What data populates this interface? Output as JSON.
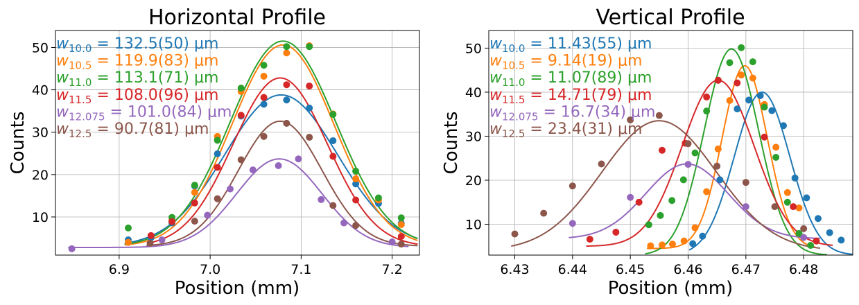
{
  "chart_data": [
    {
      "type": "scatter",
      "title": "Horizontal Profile",
      "xlabel": "Position (mm)",
      "ylabel": "Counts",
      "xlim": [
        6.83,
        7.23
      ],
      "ylim": [
        1.0,
        54.0
      ],
      "xticks": [
        6.9,
        7.0,
        7.1,
        7.2
      ],
      "xtick_labels": [
        "6.9",
        "7.0",
        "7.1",
        "7.2"
      ],
      "yticks": [
        10,
        20,
        30,
        40,
        50
      ],
      "ytick_labels": [
        "10",
        "20",
        "30",
        "40",
        "50"
      ],
      "grid": true,
      "legend_placement": "top-left",
      "series": [
        {
          "name": "w10.0",
          "label_main": "w",
          "label_sub": "10.0",
          "label_value": " = 132.5(50) μm",
          "color": "#1f77b4",
          "x": [
            6.91,
            6.935,
            6.958,
            6.983,
            7.008,
            7.034,
            7.059,
            7.084,
            7.109,
            7.135,
            7.16,
            7.185,
            7.21
          ],
          "y": [
            4.6,
            5.1,
            8.6,
            17.3,
            24.9,
            33.8,
            36.6,
            37.6,
            35.7,
            28.0,
            17.8,
            13.2,
            8.5
          ],
          "fit": {
            "amplitude": 35.8,
            "center": 7.078,
            "sigma": 0.062,
            "offset": 3.0
          }
        },
        {
          "name": "w10.5",
          "label_main": "w",
          "label_sub": "10.5",
          "label_value": " = 119.9(83) μm",
          "color": "#ff7f0e",
          "x": [
            6.91,
            6.958,
            6.983,
            7.008,
            7.034,
            7.059,
            7.084,
            7.109,
            7.135,
            7.16,
            7.185,
            7.21
          ],
          "y": [
            4.0,
            9.2,
            15.8,
            29.0,
            39.6,
            43.2,
            48.7,
            50.4,
            34.3,
            19.0,
            14.0,
            8.2
          ],
          "fit": {
            "amplitude": 47.6,
            "center": 7.08,
            "sigma": 0.056,
            "offset": 3.0
          }
        },
        {
          "name": "w11.0",
          "label_main": "w",
          "label_sub": "11.0",
          "label_value": " = 113.1(71) μm",
          "color": "#2ca02c",
          "x": [
            6.91,
            6.958,
            6.983,
            7.008,
            7.034,
            7.059,
            7.084,
            7.109,
            7.135,
            7.16,
            7.185,
            7.21
          ],
          "y": [
            7.4,
            9.9,
            17.5,
            28.1,
            40.4,
            45.8,
            50.2,
            50.2,
            34.2,
            20.8,
            14.5,
            9.8
          ],
          "fit": {
            "amplitude": 48.5,
            "center": 7.08,
            "sigma": 0.058,
            "offset": 3.0
          }
        },
        {
          "name": "w11.5",
          "label_main": "w",
          "label_sub": "11.5",
          "label_value": " = 108.0(96) μm",
          "color": "#d62728",
          "x": [
            6.935,
            6.958,
            6.983,
            7.008,
            7.034,
            7.059,
            7.084,
            7.109,
            7.135,
            7.16,
            7.21
          ],
          "y": [
            5.6,
            8.9,
            13.3,
            21.7,
            34.0,
            38.2,
            41.2,
            40.9,
            24.3,
            14.0,
            5.4
          ],
          "fit": {
            "amplitude": 39.8,
            "center": 7.077,
            "sigma": 0.052,
            "offset": 3.0
          }
        },
        {
          "name": "w12.075",
          "label_main": "w",
          "label_sub": "12.075",
          "label_value": " = 101.0(84) μm",
          "color": "#9467bd",
          "x": [
            6.848,
            6.947,
            6.997,
            7.022,
            7.047,
            7.075,
            7.097,
            7.122,
            7.147,
            7.2
          ],
          "y": [
            2.5,
            4.6,
            10.4,
            16.6,
            21.1,
            22.1,
            23.7,
            14.1,
            8.6,
            4.1
          ],
          "fit": {
            "amplitude": 20.9,
            "center": 7.076,
            "sigma": 0.047,
            "offset": 2.8
          }
        },
        {
          "name": "w12.5",
          "label_main": "w",
          "label_sub": "12.5",
          "label_value": " = 90.7(81) μm",
          "color": "#8c564b",
          "x": [
            6.934,
            6.983,
            7.008,
            7.034,
            7.059,
            7.084,
            7.109,
            7.135,
            7.16,
            7.21
          ],
          "y": [
            3.8,
            9.0,
            14.3,
            23.5,
            29.0,
            32.1,
            28.8,
            12.7,
            8.0,
            3.6
          ],
          "fit": {
            "amplitude": 29.5,
            "center": 7.077,
            "sigma": 0.046,
            "offset": 3.1
          }
        }
      ]
    },
    {
      "type": "scatter",
      "title": "Vertical Profile",
      "xlabel": "Position (mm)",
      "ylabel": "Counts",
      "xlim": [
        6.4255,
        6.4885
      ],
      "ylim": [
        3.0,
        54.0
      ],
      "xticks": [
        6.43,
        6.44,
        6.45,
        6.46,
        6.47,
        6.48
      ],
      "xtick_labels": [
        "6.43",
        "6.44",
        "6.45",
        "6.46",
        "6.47",
        "6.48"
      ],
      "yticks": [
        10,
        20,
        30,
        40,
        50
      ],
      "ytick_labels": [
        "10",
        "20",
        "30",
        "40",
        "50"
      ],
      "grid": true,
      "legend_placement": "top-left",
      "series": [
        {
          "name": "w10.0",
          "label_main": "w",
          "label_sub": "10.0",
          "label_value": " = 11.43(55) μm",
          "color": "#1f77b4",
          "x": [
            6.4608,
            6.4625,
            6.4655,
            6.4685,
            6.4705,
            6.4725,
            6.4745,
            6.4765,
            6.4785,
            6.4805,
            6.4825,
            6.4845,
            6.4865
          ],
          "y": [
            5.6,
            7.3,
            20.1,
            36.2,
            38.2,
            39.2,
            35.8,
            32.4,
            20.5,
            16.0,
            11.3,
            8.1,
            6.4
          ],
          "fit": {
            "amplitude": 37.0,
            "center": 6.4728,
            "sigma": 0.0048,
            "offset": 3.0
          }
        },
        {
          "name": "w10.5",
          "label_main": "w",
          "label_sub": "10.5",
          "label_value": " = 9.14(19) μm",
          "color": "#ff7f0e",
          "x": [
            6.4535,
            6.4555,
            6.4573,
            6.4593,
            6.4612,
            6.4632,
            6.4652,
            6.4672,
            6.4692,
            6.4712,
            6.4732,
            6.4752,
            6.4772,
            6.4792
          ],
          "y": [
            5.1,
            5.3,
            5.5,
            6.2,
            9.2,
            17.4,
            27.1,
            38.1,
            43.9,
            43.2,
            37.2,
            27.5,
            17.2,
            13.7
          ],
          "fit": {
            "amplitude": 41.5,
            "center": 6.4698,
            "sigma": 0.0039,
            "offset": 4.5
          }
        },
        {
          "name": "w11.0",
          "label_main": "w",
          "label_sub": "11.0",
          "label_value": " = 11.07(89) μm",
          "color": "#2ca02c",
          "x": [
            6.4532,
            6.4552,
            6.4572,
            6.4592,
            6.4612,
            6.4632,
            6.4652,
            6.4672,
            6.4692,
            6.4712,
            6.4732,
            6.4752,
            6.4772,
            6.4792,
            6.4812
          ],
          "y": [
            9.9,
            12.0,
            15.4,
            20.1,
            26.2,
            35.7,
            42.7,
            46.7,
            50.1,
            46.9,
            36.6,
            25.2,
            15.0,
            7.9,
            5.2
          ],
          "fit": {
            "amplitude": 46.8,
            "center": 6.4675,
            "sigma": 0.0047,
            "offset": 3.0
          }
        },
        {
          "name": "w11.5",
          "label_main": "w",
          "label_sub": "11.5",
          "label_value": " = 14.71(79) μm",
          "color": "#d62728",
          "x": [
            6.443,
            6.4475,
            6.4515,
            6.4555,
            6.4595,
            6.4632,
            6.4652,
            6.4685,
            6.4732,
            6.4782,
            6.4822
          ],
          "y": [
            6.6,
            8.2,
            15.0,
            26.8,
            28.4,
            38.9,
            42.7,
            42.1,
            29.8,
            14.0,
            6.2
          ],
          "fit": {
            "amplitude": 37.7,
            "center": 6.4652,
            "sigma": 0.0062,
            "offset": 5.0
          }
        },
        {
          "name": "w12.075",
          "label_main": "w",
          "label_sub": "12.075",
          "label_value": " = 16.7(34) μm",
          "color": "#9467bd",
          "x": [
            6.44,
            6.45,
            6.46,
            6.47,
            6.48
          ],
          "y": [
            10.2,
            16.1,
            23.6,
            14.0,
            7.0
          ],
          "fit": {
            "amplitude": 17.0,
            "center": 6.4598,
            "sigma": 0.0071,
            "offset": 6.7
          }
        },
        {
          "name": "w12.5",
          "label_main": "w",
          "label_sub": "12.5",
          "label_value": " = 23.4(31) μm",
          "color": "#8c564b",
          "x": [
            6.43,
            6.435,
            6.44,
            6.445,
            6.45,
            6.455,
            6.46,
            6.465,
            6.47,
            6.475,
            6.48
          ],
          "y": [
            7.8,
            12.5,
            18.7,
            23.7,
            33.7,
            34.7,
            28.3,
            23.2,
            19.5,
            14.0,
            9.0
          ],
          "fit": {
            "amplitude": 29.5,
            "center": 6.455,
            "sigma": 0.0099,
            "offset": 4.0
          }
        }
      ]
    }
  ]
}
